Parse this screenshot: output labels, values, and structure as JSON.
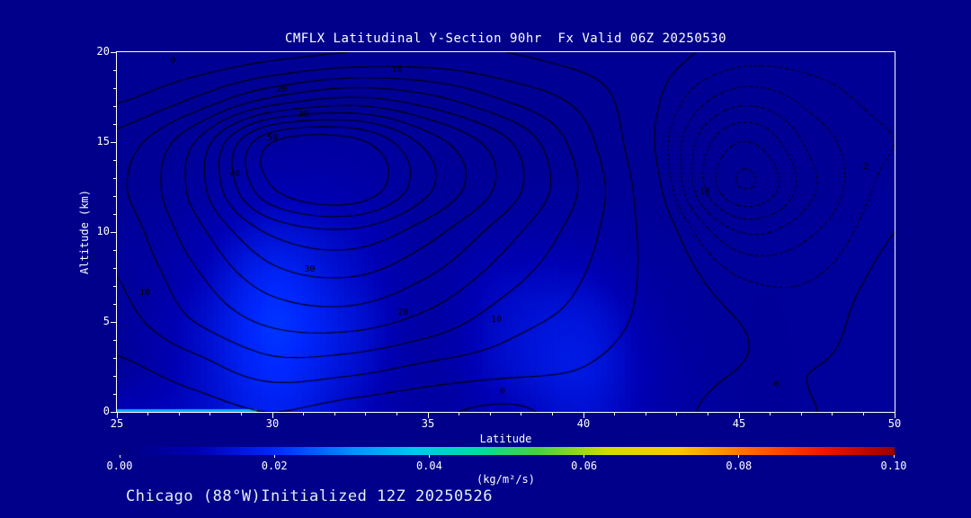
{
  "page": {
    "background": "#00008b",
    "footer": "Chicago (88°W)Initialized 12Z 20250526"
  },
  "chart_data": {
    "type": "heatmap",
    "subtype": "contoured-latitude-height-section",
    "title": "CMFLX Latitudinal Y-Section 90hr  Fx Valid 06Z 20250530",
    "xlabel": "Latitude",
    "ylabel": "Altitude (km)",
    "xlim": [
      25,
      50
    ],
    "ylim": [
      0,
      20
    ],
    "x_ticks": [
      "25",
      "30",
      "35",
      "40",
      "45",
      "50"
    ],
    "x_tick_values": [
      25,
      30,
      35,
      40,
      45,
      50
    ],
    "y_ticks": [
      "0",
      "5",
      "10",
      "15",
      "20"
    ],
    "y_tick_values": [
      0,
      5,
      10,
      15,
      20
    ],
    "grid_lats": [
      25,
      27.5,
      30,
      32.5,
      35,
      37.5,
      40,
      42.5,
      45,
      47.5,
      50
    ],
    "grid_alts": [
      0,
      2.5,
      5,
      7.5,
      10,
      12.5,
      15,
      17.5,
      20
    ],
    "contour_field": [
      [
        1,
        3,
        5,
        3,
        1,
        -1,
        2,
        1,
        -1,
        0,
        0
      ],
      [
        4,
        8,
        13,
        12,
        9,
        7,
        5,
        2,
        0,
        0,
        1
      ],
      [
        8,
        15,
        21,
        22,
        18,
        12,
        8,
        3,
        0,
        -1,
        2
      ],
      [
        10,
        19,
        28,
        30,
        25,
        17,
        10,
        3,
        -2,
        -2,
        1
      ],
      [
        12,
        23,
        36,
        39,
        32,
        22,
        12,
        2,
        -6,
        -4,
        0
      ],
      [
        14,
        27,
        50,
        55,
        41,
        28,
        14,
        0,
        -12,
        -6,
        -1
      ],
      [
        12,
        25,
        50,
        52,
        38,
        26,
        12,
        -1,
        -10,
        -5,
        -2
      ],
      [
        4,
        10,
        20,
        25,
        21,
        14,
        8,
        0,
        -5,
        -3,
        -1
      ],
      [
        0,
        1,
        3,
        5,
        6,
        5,
        3,
        1,
        -1,
        -1,
        0
      ]
    ],
    "contour_levels_solid": [
      0,
      5,
      10,
      15,
      20,
      25,
      30,
      35,
      40,
      45,
      50
    ],
    "contour_levels_dashed": [
      -12,
      -10,
      -8,
      -6,
      -4,
      -2
    ],
    "contour_labels": [
      {
        "text": "0",
        "lat": 26.8,
        "alt": 19.5
      },
      {
        "text": "10",
        "lat": 34.0,
        "alt": 19.0
      },
      {
        "text": "20",
        "lat": 30.3,
        "alt": 17.9
      },
      {
        "text": "30",
        "lat": 31.0,
        "alt": 16.5
      },
      {
        "text": "50",
        "lat": 30.0,
        "alt": 15.2
      },
      {
        "text": "40",
        "lat": 28.8,
        "alt": 13.2
      },
      {
        "text": "30",
        "lat": 31.2,
        "alt": 7.9
      },
      {
        "text": "20",
        "lat": 34.2,
        "alt": 5.5
      },
      {
        "text": "10",
        "lat": 25.9,
        "alt": 6.6
      },
      {
        "text": "10",
        "lat": 37.2,
        "alt": 5.1
      },
      {
        "text": "0",
        "lat": 37.4,
        "alt": 1.1
      },
      {
        "text": "0",
        "lat": 46.2,
        "alt": 1.5
      },
      {
        "text": "-10",
        "lat": 43.8,
        "alt": 12.2
      },
      {
        "text": "-2",
        "lat": 49.0,
        "alt": 13.6
      }
    ],
    "shading_field": [
      [
        0.01,
        0.012,
        0.018,
        0.012,
        0.006,
        0.01,
        0.014,
        0.008,
        0.005,
        0.005,
        0.005
      ],
      [
        0.005,
        0.012,
        0.02,
        0.014,
        0.007,
        0.013,
        0.016,
        0.008,
        0.005,
        0.005,
        0.005
      ],
      [
        0.005,
        0.012,
        0.021,
        0.015,
        0.007,
        0.013,
        0.015,
        0.007,
        0.005,
        0.005,
        0.005
      ],
      [
        0.005,
        0.01,
        0.019,
        0.013,
        0.007,
        0.011,
        0.011,
        0.006,
        0.005,
        0.005,
        0.005
      ],
      [
        0.005,
        0.008,
        0.014,
        0.011,
        0.006,
        0.007,
        0.007,
        0.005,
        0.005,
        0.005,
        0.005
      ],
      [
        0.004,
        0.006,
        0.009,
        0.008,
        0.005,
        0.005,
        0.005,
        0.004,
        0.004,
        0.004,
        0.005
      ],
      [
        0.004,
        0.005,
        0.006,
        0.006,
        0.005,
        0.004,
        0.004,
        0.004,
        0.004,
        0.004,
        0.004
      ],
      [
        0.004,
        0.004,
        0.004,
        0.004,
        0.004,
        0.004,
        0.004,
        0.004,
        0.004,
        0.004,
        0.004
      ],
      [
        0.004,
        0.004,
        0.004,
        0.004,
        0.004,
        0.004,
        0.004,
        0.004,
        0.004,
        0.004,
        0.004
      ]
    ],
    "background_value": 0.004,
    "surface_strip": {
      "lat_from": 25,
      "lat_to": 29.5,
      "value": 0.035
    },
    "colorbar": {
      "min": 0.0,
      "max": 0.1,
      "ticks": [
        "0.00",
        "0.02",
        "0.04",
        "0.06",
        "0.08",
        "0.10"
      ],
      "tick_values": [
        0.0,
        0.02,
        0.04,
        0.06,
        0.08,
        0.1
      ],
      "units": "(kg/m²/s)",
      "stops": [
        [
          0.0,
          "#000080"
        ],
        [
          0.1,
          "#0000b4"
        ],
        [
          0.2,
          "#0028ff"
        ],
        [
          0.3,
          "#0090ff"
        ],
        [
          0.38,
          "#00c8f0"
        ],
        [
          0.46,
          "#00dca0"
        ],
        [
          0.54,
          "#46d246"
        ],
        [
          0.63,
          "#d2dc00"
        ],
        [
          0.72,
          "#ffc800"
        ],
        [
          0.82,
          "#ff6400"
        ],
        [
          0.91,
          "#f01400"
        ],
        [
          1.0,
          "#960000"
        ]
      ]
    }
  }
}
